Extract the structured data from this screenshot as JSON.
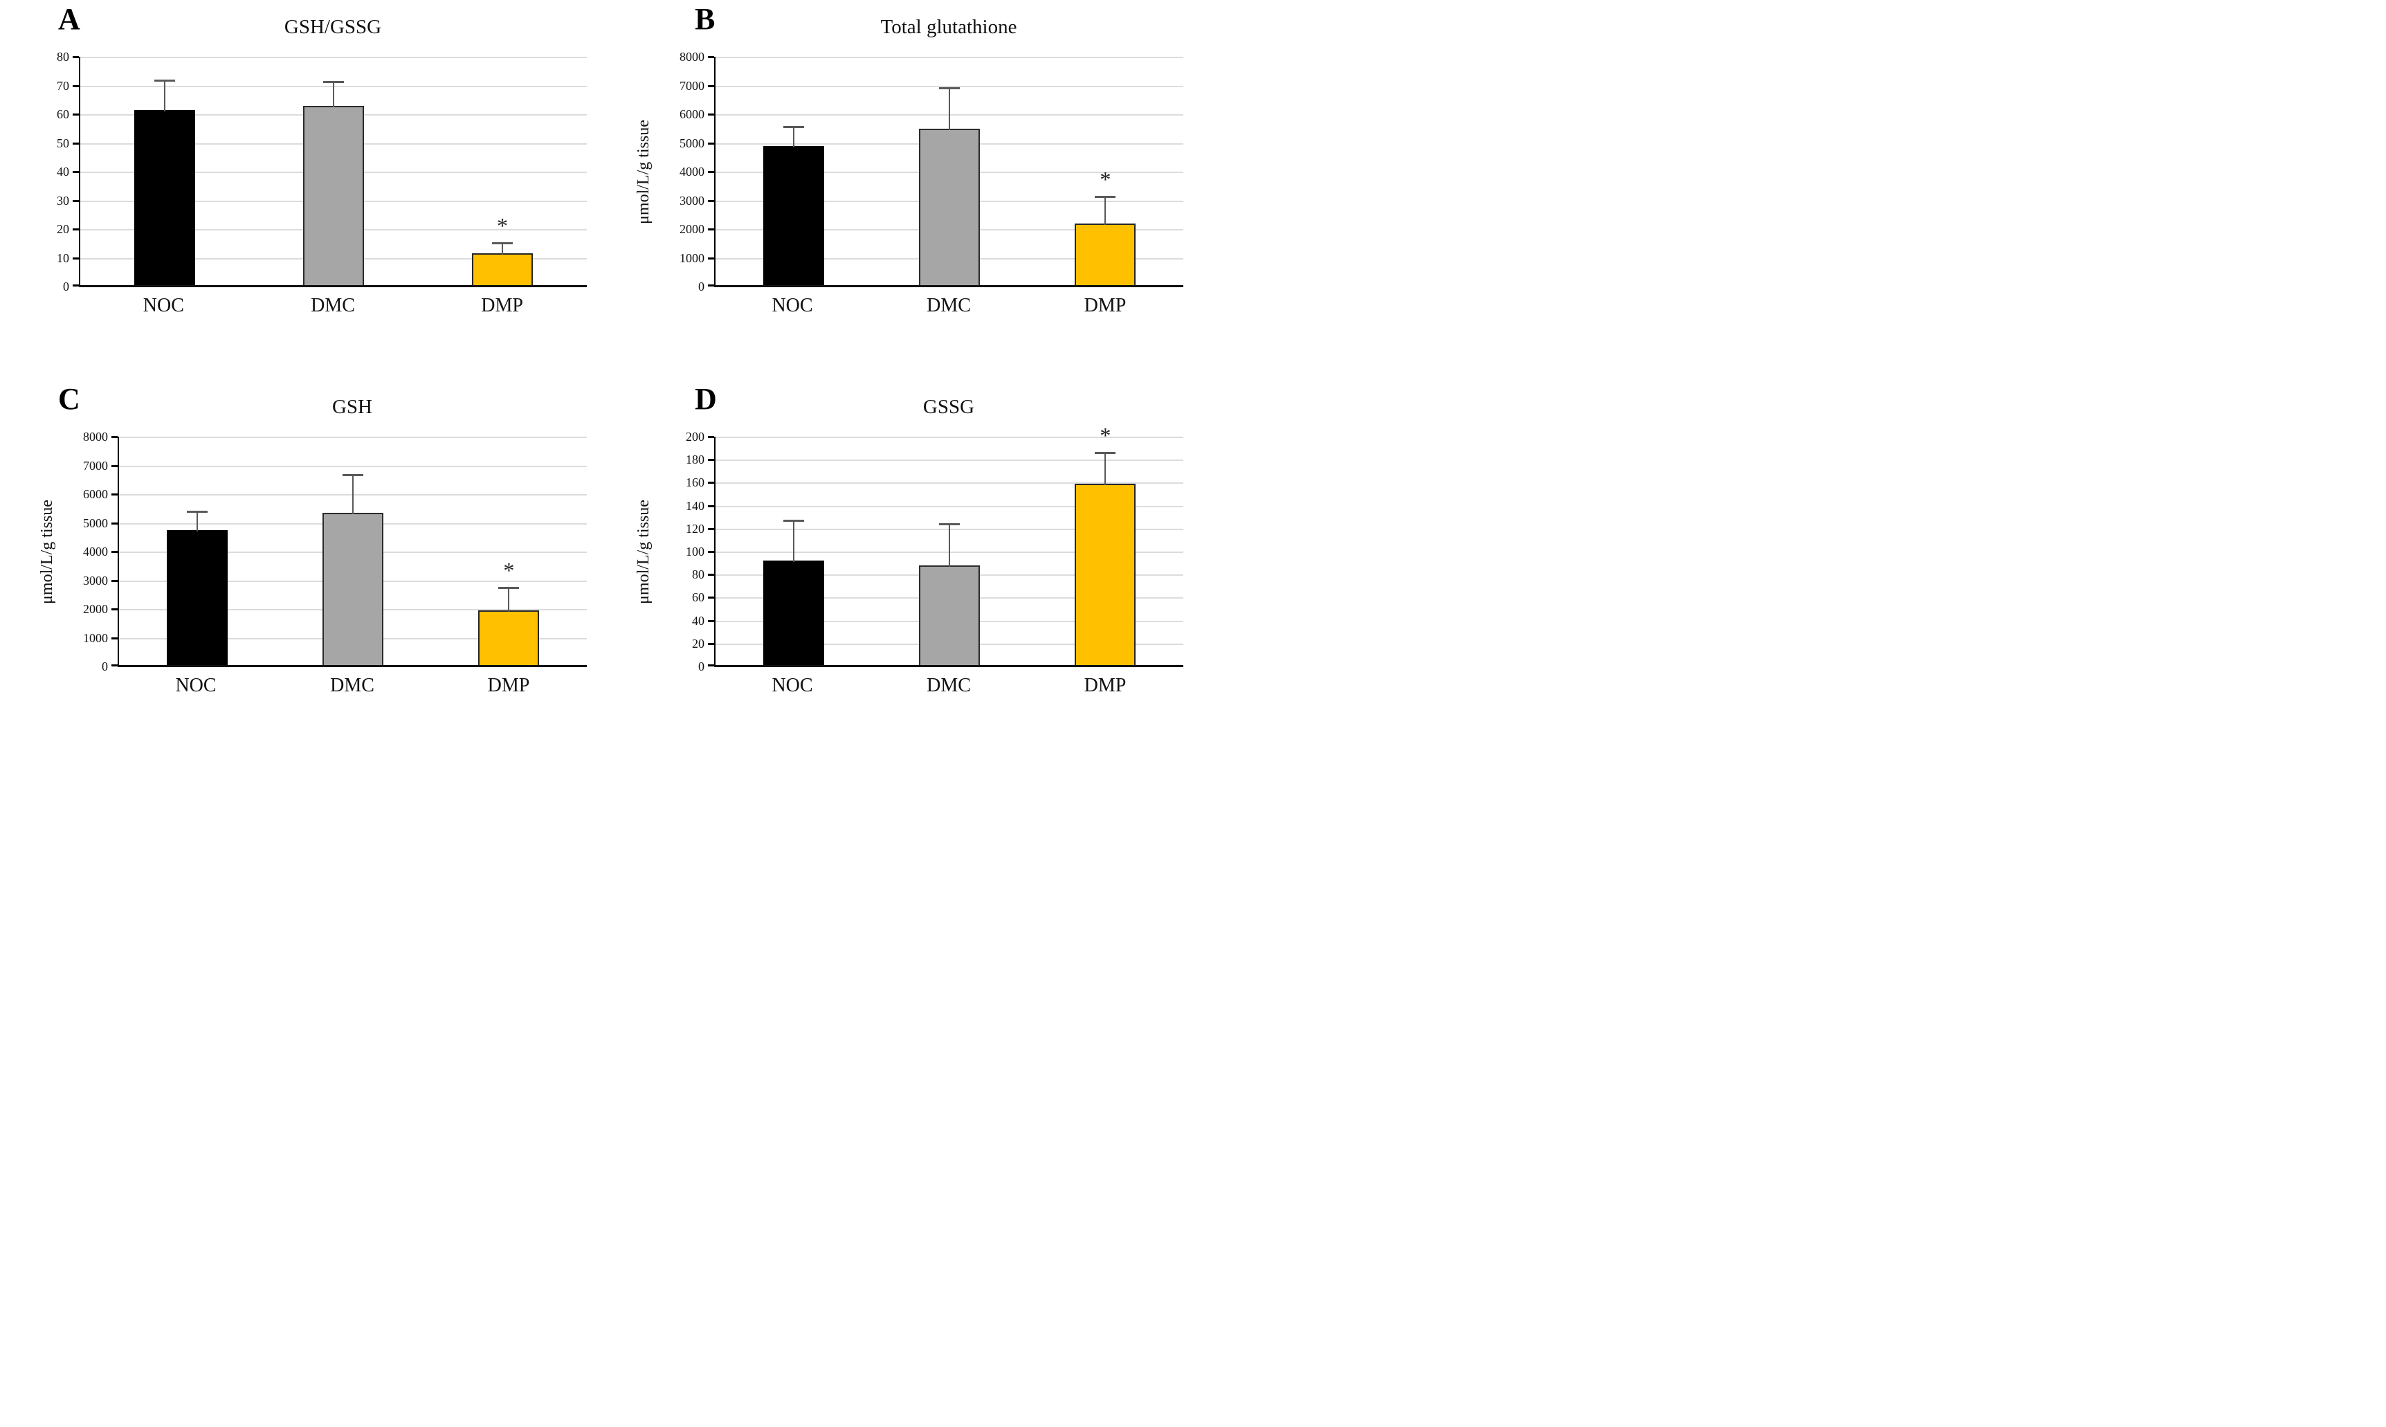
{
  "figure": {
    "background": "#ffffff",
    "sig_marker": "*"
  },
  "styles": {
    "gridline": "#dcdcdc",
    "axis": "#000000",
    "baseline": "#111111",
    "error_bar": "#595959",
    "asterisk": "#262626",
    "bar_colors": [
      "#000000",
      "#a6a6a6",
      "#ffc000"
    ],
    "bar_borders": [
      "#000000",
      "#2b2b2b",
      "#262626"
    ]
  },
  "chart_data": [
    {
      "type": "bar",
      "panel": "A",
      "title": "GSH/GSSG",
      "ylabel": "",
      "categories": [
        "NOC",
        "DMC",
        "DMP"
      ],
      "values": [
        61.5,
        63,
        11.5
      ],
      "error_top": [
        72,
        71.5,
        15.5
      ],
      "significant": [
        false,
        false,
        true
      ],
      "ylim": [
        0,
        80
      ],
      "yticks": [
        "0",
        "10",
        "20",
        "30",
        "40",
        "50",
        "60",
        "70",
        "80"
      ],
      "grid": true,
      "legend": "none"
    },
    {
      "type": "bar",
      "panel": "B",
      "title": "Total glutathione",
      "ylabel": "μmol/L/g tissue",
      "categories": [
        "NOC",
        "DMC",
        "DMP"
      ],
      "values": [
        4900,
        5500,
        2200
      ],
      "error_top": [
        5600,
        6950,
        3150
      ],
      "significant": [
        false,
        false,
        true
      ],
      "ylim": [
        0,
        8000
      ],
      "yticks": [
        "0",
        "1000",
        "2000",
        "3000",
        "4000",
        "5000",
        "6000",
        "7000",
        "8000"
      ],
      "grid": true,
      "legend": "none"
    },
    {
      "type": "bar",
      "panel": "C",
      "title": "GSH",
      "ylabel": "μmol/L/g tissue",
      "categories": [
        "NOC",
        "DMC",
        "DMP"
      ],
      "values": [
        4750,
        5350,
        1950
      ],
      "error_top": [
        5420,
        6700,
        2780
      ],
      "significant": [
        false,
        false,
        true
      ],
      "ylim": [
        0,
        8000
      ],
      "yticks": [
        "0",
        "1000",
        "2000",
        "3000",
        "4000",
        "5000",
        "6000",
        "7000",
        "8000"
      ],
      "grid": true,
      "legend": "none"
    },
    {
      "type": "bar",
      "panel": "D",
      "title": "GSSG",
      "ylabel": "μmol/L/g tissue",
      "categories": [
        "NOC",
        "DMC",
        "DMP"
      ],
      "values": [
        92,
        88,
        159
      ],
      "error_top": [
        128,
        125,
        187
      ],
      "significant": [
        false,
        false,
        true
      ],
      "ylim": [
        0,
        200
      ],
      "yticks": [
        "0",
        "20",
        "40",
        "60",
        "80",
        "100",
        "120",
        "140",
        "160",
        "180",
        "200"
      ],
      "grid": true,
      "legend": "none"
    }
  ]
}
